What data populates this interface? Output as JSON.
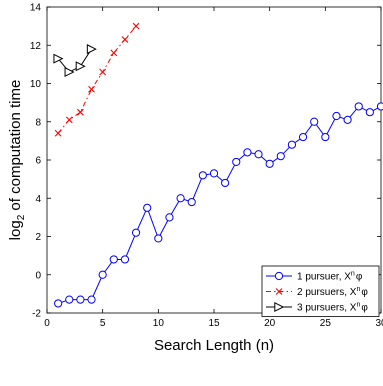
{
  "chart_data": {
    "type": "line",
    "xlabel": "Search Length (n)",
    "ylabel": "log2 of computation time",
    "ylabel_base": "log",
    "ylabel_sub": "2",
    "ylabel_rest": " of computation time",
    "xlim": [
      0,
      30
    ],
    "ylim": [
      -2,
      14
    ],
    "xticks": [
      0,
      5,
      10,
      15,
      20,
      25,
      30
    ],
    "yticks": [
      -2,
      0,
      2,
      4,
      6,
      8,
      10,
      12,
      14
    ],
    "grid": false,
    "legend_position": "bottom-right",
    "series": [
      {
        "name": "1 pursuer, Xⁿφ",
        "legend_main": "1 pursuer, X",
        "legend_sup": "n",
        "legend_tail": "φ",
        "color": "#0000ff",
        "line_style": "solid",
        "marker": "circle",
        "x": [
          1,
          2,
          3,
          4,
          5,
          6,
          7,
          8,
          9,
          10,
          11,
          12,
          13,
          14,
          15,
          16,
          17,
          18,
          19,
          20,
          21,
          22,
          23,
          24,
          25,
          26,
          27,
          28,
          29,
          30
        ],
        "y": [
          -1.5,
          -1.3,
          -1.3,
          -1.3,
          0.0,
          0.8,
          0.8,
          2.2,
          3.5,
          1.9,
          3.0,
          4.0,
          3.8,
          5.2,
          5.3,
          4.8,
          5.9,
          6.4,
          6.3,
          5.8,
          6.2,
          6.8,
          7.2,
          8.0,
          7.2,
          8.3,
          8.1,
          8.8,
          8.5,
          8.8
        ]
      },
      {
        "name": "2 pursuers, Xⁿφ",
        "legend_main": "2 pursuers, X",
        "legend_sup": "n",
        "legend_tail": "φ",
        "color": "#ff0000",
        "line_style": "dashdot",
        "marker": "x",
        "x": [
          1,
          2,
          3,
          4,
          5,
          6,
          7,
          8
        ],
        "y": [
          7.4,
          8.1,
          8.5,
          9.7,
          10.6,
          11.6,
          12.3,
          13.0
        ]
      },
      {
        "name": "3 pursuers, Xⁿφ",
        "legend_main": "3 pursuers, X",
        "legend_sup": "n",
        "legend_tail": "φ",
        "color": "#000000",
        "line_style": "solid",
        "marker": "triangle-right",
        "x": [
          1,
          2,
          3,
          4
        ],
        "y": [
          11.3,
          10.6,
          10.9,
          11.8
        ]
      }
    ]
  }
}
